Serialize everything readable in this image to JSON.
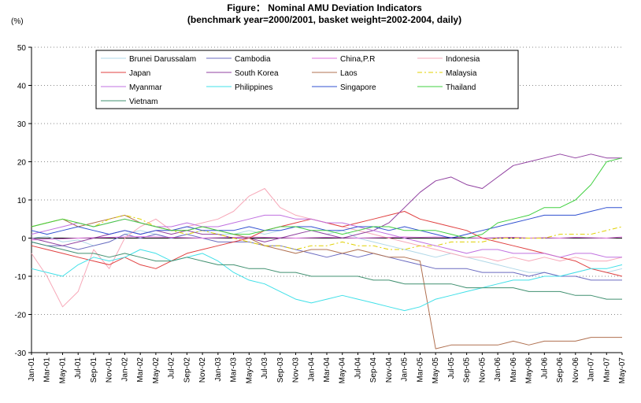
{
  "chart_data": {
    "type": "line",
    "title": "Figure： Nominal AMU Deviation Indicators",
    "subtitle": "(benchmark year=2000/2001, basket weight=2002-2004, daily)",
    "ylabel": "(%)",
    "xlabel": "",
    "ylim": [
      -30,
      50
    ],
    "y_ticks": [
      "50",
      "40",
      "30",
      "20",
      "10",
      "0",
      "-10",
      "-20",
      "-30"
    ],
    "x_ticks": [
      "Jan-01",
      "Mar-01",
      "May-01",
      "Jul-01",
      "Sep-01",
      "Nov-01",
      "Jan-02",
      "Mar-02",
      "May-02",
      "Jul-02",
      "Sep-02",
      "Nov-02",
      "Jan-03",
      "Mar-03",
      "May-03",
      "Jul-03",
      "Sep-03",
      "Nov-03",
      "Jan-04",
      "Mar-04",
      "May-04",
      "Jul-04",
      "Sep-04",
      "Nov-04",
      "Jan-05",
      "Mar-05",
      "May-05",
      "Jul-05",
      "Sep-05",
      "Nov-05",
      "Jan-06",
      "Mar-06",
      "May-06",
      "Jul-06",
      "Sep-06",
      "Nov-06",
      "Jan-07",
      "Mar-07",
      "May-07"
    ],
    "grid": "horizontal dotted",
    "legend_position": "top, inside plot",
    "series": [
      {
        "name": "Brunei Darussalam",
        "color": "#b0d8e8",
        "dash": "",
        "values": [
          0,
          0.5,
          -1,
          -0.5,
          -2,
          -1,
          1,
          2,
          1,
          0,
          1,
          2,
          1,
          1,
          2,
          1,
          2,
          3,
          2,
          1,
          2,
          0,
          -1,
          -2,
          -3,
          -4,
          -5,
          -4,
          -5,
          -6,
          -7,
          -8,
          -9,
          -9,
          -10,
          -9,
          -8,
          -9,
          -8
        ]
      },
      {
        "name": "Cambodia",
        "color": "#6b6bc0",
        "dash": "",
        "values": [
          -1,
          -2,
          -2,
          -3,
          -2,
          -1,
          1,
          0,
          1,
          0,
          1,
          0,
          -1,
          -1,
          -1,
          -2,
          -2,
          -3,
          -4,
          -5,
          -4,
          -5,
          -4,
          -5,
          -6,
          -7,
          -8,
          -8,
          -8,
          -9,
          -9,
          -9,
          -10,
          -9,
          -10,
          -10,
          -11,
          -11,
          -11
        ]
      },
      {
        "name": "China,P.R",
        "color": "#e070e0",
        "dash": "",
        "values": [
          -0.5,
          -0.3,
          -0.2,
          0,
          0.1,
          0.2,
          0.3,
          0.4,
          0.3,
          0.2,
          0.1,
          0,
          0.1,
          0.2,
          0.3,
          0.2,
          0.1,
          0,
          0.1,
          0.2,
          0.1,
          0,
          0.1,
          0.2,
          0.3,
          0.2,
          0.3,
          0.2,
          0.1,
          0,
          0.1,
          0.2,
          0,
          0.1,
          0,
          0.2,
          0.1,
          0,
          0.3
        ]
      },
      {
        "name": "Indonesia",
        "color": "#f7a8b8",
        "dash": "",
        "values": [
          -4,
          -10,
          -18,
          -14,
          -3,
          -8,
          0,
          3,
          5,
          2,
          3,
          4,
          5,
          7,
          11,
          13,
          8,
          6,
          5,
          4,
          3,
          2,
          1,
          0,
          -1,
          -2,
          -3,
          -4,
          -5,
          -5,
          -6,
          -5,
          -6,
          -5,
          -6,
          -5,
          -6,
          -6,
          -5
        ]
      },
      {
        "name": "Japan",
        "color": "#e04040",
        "dash": "",
        "values": [
          -2,
          -3,
          -4,
          -5,
          -6,
          -7,
          -5,
          -7,
          -8,
          -6,
          -4,
          -3,
          -2,
          -1,
          0,
          2,
          3,
          4,
          5,
          4,
          3,
          4,
          5,
          6,
          7,
          5,
          4,
          3,
          2,
          0,
          -1,
          -2,
          -3,
          -4,
          -5,
          -6,
          -8,
          -9,
          -10
        ]
      },
      {
        "name": "South Korea",
        "color": "#9040a0",
        "dash": "",
        "values": [
          0,
          -1,
          -2,
          -1,
          0,
          1,
          2,
          1,
          2,
          1,
          2,
          1,
          1,
          0,
          0,
          -1,
          0,
          1,
          2,
          1,
          0,
          1,
          2,
          4,
          8,
          12,
          15,
          16,
          14,
          13,
          16,
          19,
          20,
          21,
          22,
          21,
          22,
          21,
          21
        ]
      },
      {
        "name": "Laos",
        "color": "#b07050",
        "dash": "",
        "values": [
          3,
          4,
          5,
          3,
          4,
          5,
          6,
          4,
          3,
          2,
          2,
          3,
          2,
          1,
          0,
          -2,
          -3,
          -4,
          -3,
          -3,
          -4,
          -3,
          -4,
          -5,
          -5,
          -6,
          -29,
          -28,
          -28,
          -28,
          -28,
          -27,
          -28,
          -27,
          -27,
          -27,
          -26,
          -26,
          -26
        ]
      },
      {
        "name": "Malaysia",
        "color": "#e0d000",
        "dash": "6,3,2,3",
        "values": [
          3,
          4,
          5,
          4,
          3,
          5,
          6,
          5,
          3,
          2,
          1,
          2,
          1,
          0,
          -1,
          -2,
          -2,
          -3,
          -2,
          -2,
          -1,
          -2,
          -2,
          -3,
          -3,
          -2,
          -2,
          -1,
          -1,
          -1,
          0,
          0,
          0,
          0,
          1,
          1,
          1,
          2,
          3
        ]
      },
      {
        "name": "Myanmar",
        "color": "#c070e0",
        "dash": "",
        "values": [
          1,
          2,
          3,
          4,
          3,
          4,
          5,
          4,
          3,
          3,
          4,
          3,
          3,
          4,
          5,
          6,
          6,
          5,
          5,
          4,
          4,
          3,
          2,
          1,
          0,
          -1,
          -2,
          -3,
          -4,
          -3,
          -3,
          -4,
          -4,
          -4,
          -5,
          -4,
          -4,
          -5,
          -5
        ]
      },
      {
        "name": "Philippines",
        "color": "#40e0e8",
        "dash": "",
        "values": [
          -8,
          -9,
          -10,
          -7,
          -5,
          -6,
          -5,
          -3,
          -4,
          -6,
          -5,
          -4,
          -6,
          -9,
          -11,
          -12,
          -14,
          -16,
          -17,
          -16,
          -15,
          -16,
          -17,
          -18,
          -19,
          -18,
          -16,
          -15,
          -14,
          -13,
          -12,
          -11,
          -11,
          -10,
          -10,
          -9,
          -8,
          -8,
          -7
        ]
      },
      {
        "name": "Singapore",
        "color": "#3050d0",
        "dash": "",
        "values": [
          2,
          1,
          2,
          3,
          2,
          1,
          2,
          1,
          2,
          2,
          3,
          2,
          2,
          2,
          3,
          2,
          2,
          3,
          3,
          2,
          2,
          3,
          3,
          2,
          3,
          2,
          1,
          0,
          1,
          2,
          3,
          4,
          5,
          6,
          6,
          6,
          7,
          8,
          8
        ]
      },
      {
        "name": "Thailand",
        "color": "#40d040",
        "dash": "",
        "values": [
          3,
          4,
          5,
          4,
          3,
          4,
          5,
          4,
          3,
          2,
          2,
          3,
          2,
          1,
          1,
          2,
          3,
          3,
          2,
          2,
          1,
          2,
          3,
          3,
          2,
          2,
          2,
          1,
          0,
          1,
          4,
          5,
          6,
          8,
          8,
          10,
          14,
          20,
          21
        ]
      },
      {
        "name": "Vietnam",
        "color": "#409070",
        "dash": "",
        "values": [
          -1,
          -2,
          -3,
          -4,
          -4,
          -5,
          -4,
          -5,
          -6,
          -6,
          -5,
          -6,
          -7,
          -7,
          -8,
          -8,
          -9,
          -9,
          -10,
          -10,
          -10,
          -10,
          -11,
          -11,
          -12,
          -12,
          -12,
          -12,
          -13,
          -13,
          -13,
          -13,
          -14,
          -14,
          -14,
          -15,
          -15,
          -16,
          -16
        ]
      }
    ]
  }
}
